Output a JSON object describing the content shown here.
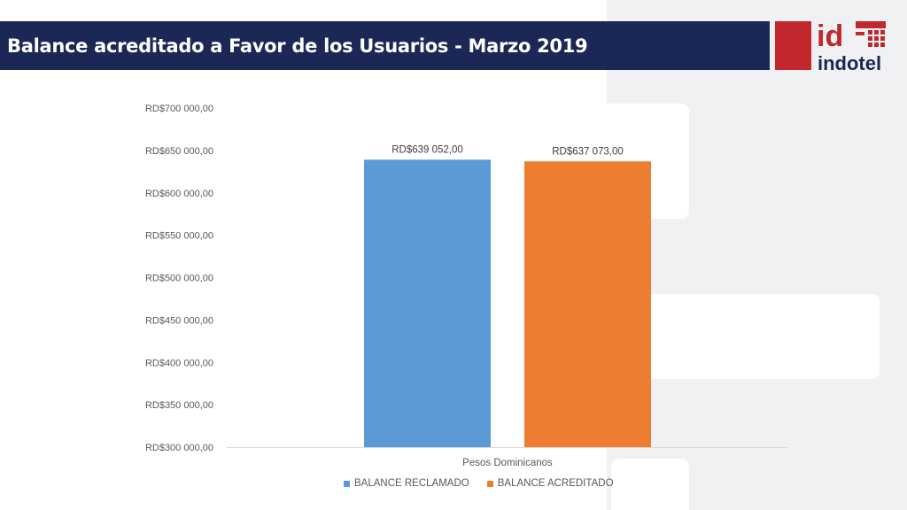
{
  "header": {
    "title": "Balance acreditado a Favor de los Usuarios - Marzo 2019"
  },
  "logo": {
    "text": "indotel",
    "mark": "id",
    "colors": {
      "red": "#c1272d",
      "navy": "#1b2755"
    }
  },
  "chart_data": {
    "type": "bar",
    "categories": [
      "Pesos Dominicanos"
    ],
    "series": [
      {
        "name": "BALANCE RECLAMADO",
        "values": [
          639052
        ],
        "label": "RD$639 052,00",
        "color": "#5b9bd5"
      },
      {
        "name": "BALANCE ACREDITADO",
        "values": [
          637073
        ],
        "label": "RD$637 073,00",
        "color": "#ed7d31"
      }
    ],
    "ylim": [
      300000,
      700000
    ],
    "yticks": [
      300000,
      350000,
      400000,
      450000,
      500000,
      550000,
      600000,
      650000,
      700000
    ],
    "ytick_labels": [
      "RD$300 000,00",
      "RD$350 000,00",
      "RD$400 000,00",
      "RD$450 000,00",
      "RD$500 000,00",
      "RD$550 000,00",
      "RD$600 000,00",
      "RD$650 000,00",
      "RD$700 000,00"
    ],
    "grid": false,
    "legend": "bottom"
  }
}
